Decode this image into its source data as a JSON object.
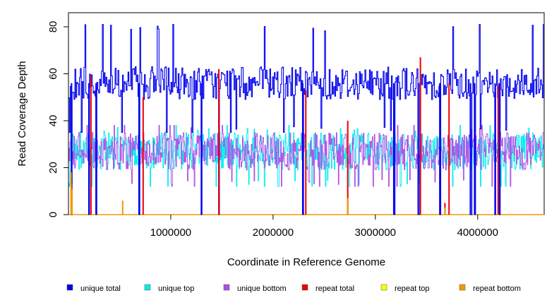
{
  "chart_data": {
    "type": "line",
    "xlabel": "Coordinate in Reference Genome",
    "ylabel": "Read Coverage Depth",
    "xlim": [
      0,
      4650000
    ],
    "ylim": [
      0,
      86
    ],
    "x_ticks": [
      1000000,
      2000000,
      3000000,
      4000000
    ],
    "x_tick_labels": [
      "1000000",
      "2000000",
      "3000000",
      "4000000"
    ],
    "y_ticks": [
      0,
      20,
      40,
      60,
      80
    ],
    "y_tick_labels": [
      "0",
      "20",
      "40",
      "60",
      "80"
    ],
    "grid": false,
    "legend_position": "bottom",
    "series": [
      {
        "name": "unique total",
        "color": "#0000ee",
        "style": "step",
        "approx_baseline": 56,
        "approx_range": [
          35,
          81
        ],
        "dropouts_to_zero_at": [
          30000,
          200000,
          270000,
          690000,
          1300000,
          1470000,
          2290000,
          3180000,
          3420000,
          3630000,
          3930000,
          3970000,
          4170000,
          4210000
        ]
      },
      {
        "name": "unique top",
        "color": "#00eeee",
        "style": "step",
        "approx_baseline": 27,
        "approx_range": [
          12,
          38
        ]
      },
      {
        "name": "unique bottom",
        "color": "#b04fe8",
        "style": "step",
        "approx_baseline": 27,
        "approx_range": [
          12,
          38
        ]
      },
      {
        "name": "repeat total",
        "color": "#ee0000",
        "style": "spikes",
        "points": [
          [
            30000,
            13
          ],
          [
            220000,
            59
          ],
          [
            730000,
            50
          ],
          [
            1470000,
            62
          ],
          [
            2320000,
            53
          ],
          [
            2730000,
            40
          ],
          [
            3440000,
            67
          ],
          [
            3680000,
            5
          ],
          [
            3720000,
            56
          ],
          [
            4200000,
            55
          ]
        ]
      },
      {
        "name": "repeat top",
        "color": "#ffff00",
        "style": "spikes",
        "points": []
      },
      {
        "name": "repeat bottom",
        "color": "#ee9a00",
        "style": "spikes",
        "points": [
          [
            25000,
            18
          ],
          [
            35000,
            11
          ],
          [
            530000,
            6
          ],
          [
            2730000,
            7
          ],
          [
            3680000,
            3
          ]
        ]
      }
    ]
  }
}
